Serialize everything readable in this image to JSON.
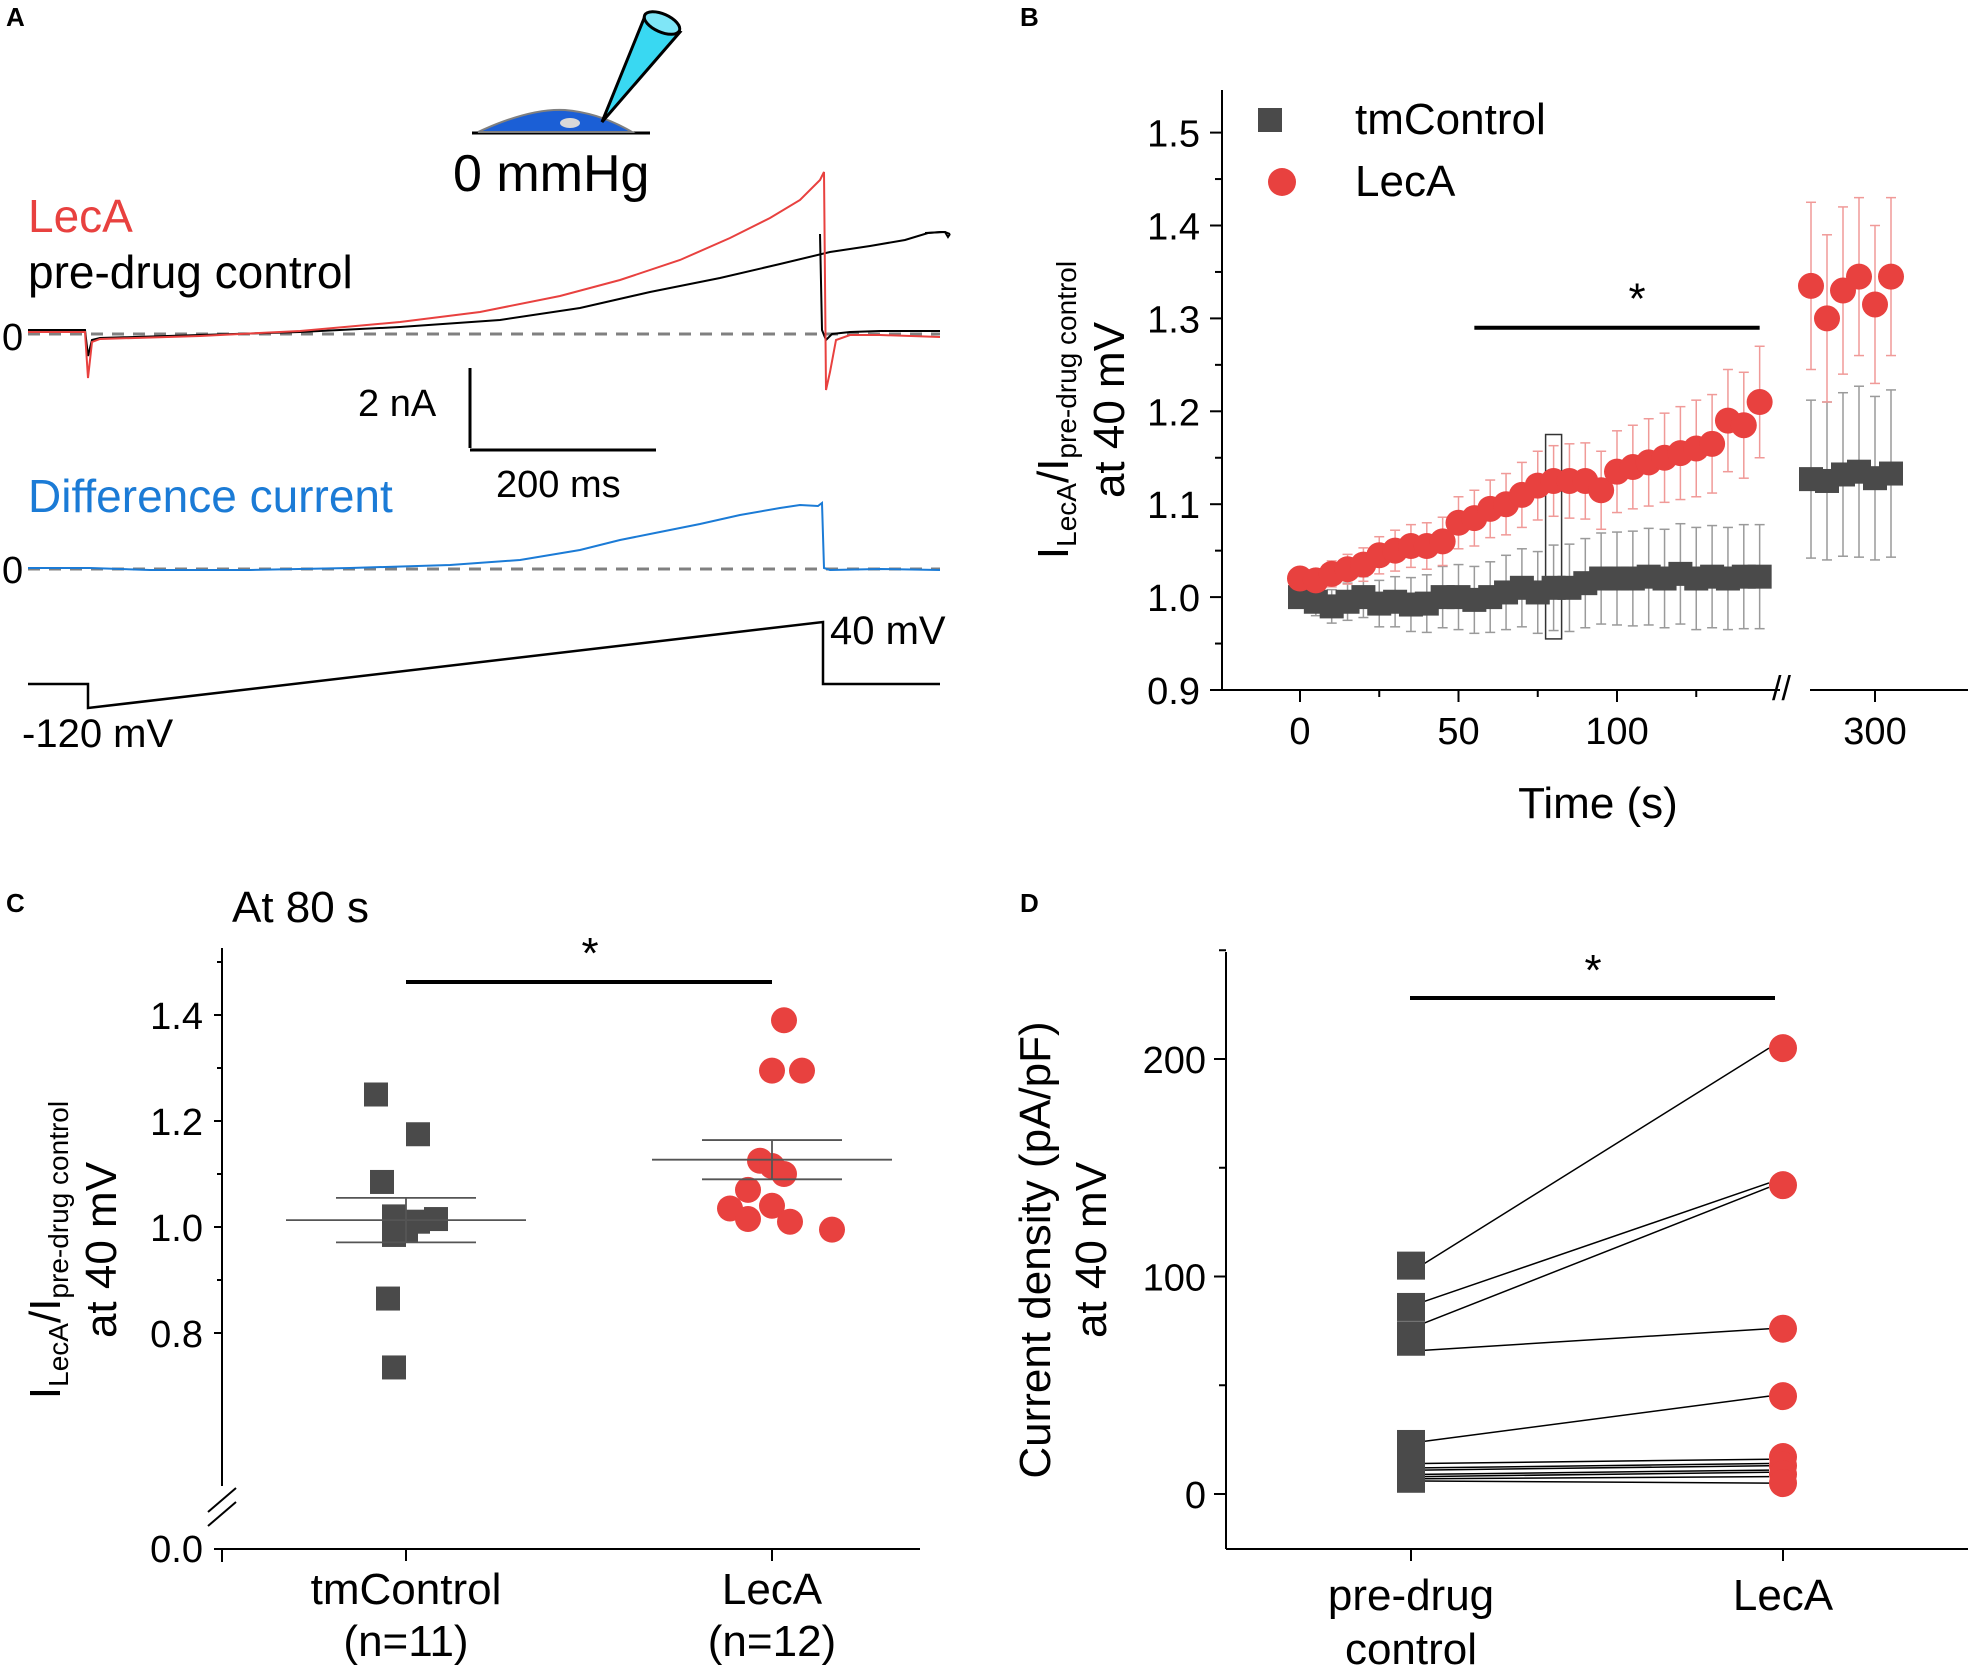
{
  "colors": {
    "red": "#e8413f",
    "black": "#000000",
    "gray": "#4a4a4a",
    "blue": "#1b7bd6",
    "err_red": "#f09a98",
    "err_gray": "#9a9a9a",
    "cyan": "#39d8f2",
    "cell": "#1b5fd6"
  },
  "panelA": {
    "letter": "A",
    "pressure_label": "0 mmHg",
    "legend_leca": "LecA",
    "legend_control": "pre-drug control",
    "diff_label": "Difference current",
    "zero1": "0",
    "zero2": "0",
    "scale_y": "2 nA",
    "scale_x": "200 ms",
    "v_hold": "-120 mV",
    "v_end": "40 mV"
  },
  "chart_data": [
    {
      "panel": "B",
      "type": "scatter",
      "xlabel": "Time (s)",
      "ylabel_main": "I",
      "ylabel_sub1": "LecA",
      "ylabel_sep": "/I",
      "ylabel_sub2": "pre-drug control",
      "ylabel_line2": "at 40 mV",
      "ylim": [
        0.9,
        1.55
      ],
      "xticks": [
        {
          "v": 0,
          "label": "0"
        },
        {
          "v": 50,
          "label": "50"
        },
        {
          "v": 100,
          "label": "100"
        },
        {
          "v": 300,
          "label": "300"
        }
      ],
      "yticks": [
        {
          "v": 0.9,
          "label": "0.9"
        },
        {
          "v": 1.0,
          "label": "1.0"
        },
        {
          "v": 1.1,
          "label": "1.1"
        },
        {
          "v": 1.2,
          "label": "1.2"
        },
        {
          "v": 1.3,
          "label": "1.3"
        },
        {
          "v": 1.4,
          "label": "1.4"
        },
        {
          "v": 1.5,
          "label": "1.5"
        }
      ],
      "axis_break": "//",
      "significance": {
        "label": "*",
        "from": 55,
        "to": 145,
        "y": 1.29
      },
      "highlight_box": {
        "x": 80,
        "y_low": 0.955,
        "y_high": 1.175
      },
      "series": [
        {
          "name": "tmControl",
          "color": "gray",
          "marker": "square",
          "x": [
            0,
            5,
            10,
            15,
            20,
            25,
            30,
            35,
            40,
            45,
            50,
            55,
            60,
            65,
            70,
            75,
            80,
            85,
            90,
            95,
            100,
            105,
            110,
            115,
            120,
            125,
            130,
            135,
            140,
            145
          ],
          "y": [
            1.0,
            0.995,
            0.99,
            0.995,
            1.0,
            0.993,
            0.995,
            0.992,
            0.993,
            1.0,
            1.0,
            0.997,
            1.0,
            1.005,
            1.01,
            1.005,
            1.01,
            1.01,
            1.015,
            1.02,
            1.02,
            1.02,
            1.022,
            1.02,
            1.025,
            1.02,
            1.022,
            1.02,
            1.022,
            1.022
          ],
          "err": [
            0.012,
            0.015,
            0.018,
            0.02,
            0.022,
            0.025,
            0.027,
            0.029,
            0.031,
            0.033,
            0.035,
            0.036,
            0.038,
            0.04,
            0.042,
            0.044,
            0.046,
            0.047,
            0.048,
            0.049,
            0.05,
            0.051,
            0.052,
            0.053,
            0.054,
            0.055,
            0.055,
            0.055,
            0.056,
            0.056
          ],
          "x_after": [
            280,
            285,
            290,
            295,
            300,
            305
          ],
          "y_after": [
            1.127,
            1.125,
            1.132,
            1.135,
            1.128,
            1.133
          ],
          "err_after": [
            0.085,
            0.085,
            0.088,
            0.092,
            0.088,
            0.09
          ]
        },
        {
          "name": "LecA",
          "color": "red",
          "marker": "circle",
          "x": [
            0,
            5,
            10,
            15,
            20,
            25,
            30,
            35,
            40,
            45,
            50,
            55,
            60,
            65,
            70,
            75,
            80,
            85,
            90,
            95,
            100,
            105,
            110,
            115,
            120,
            125,
            130,
            135,
            140,
            145
          ],
          "y": [
            1.02,
            1.018,
            1.025,
            1.03,
            1.035,
            1.045,
            1.05,
            1.055,
            1.055,
            1.06,
            1.08,
            1.085,
            1.095,
            1.1,
            1.11,
            1.12,
            1.125,
            1.125,
            1.125,
            1.115,
            1.135,
            1.14,
            1.145,
            1.15,
            1.155,
            1.16,
            1.165,
            1.19,
            1.185,
            1.21
          ],
          "err": [
            0.01,
            0.012,
            0.014,
            0.016,
            0.018,
            0.02,
            0.022,
            0.023,
            0.025,
            0.026,
            0.028,
            0.03,
            0.031,
            0.033,
            0.035,
            0.037,
            0.038,
            0.04,
            0.041,
            0.042,
            0.044,
            0.045,
            0.047,
            0.048,
            0.05,
            0.052,
            0.053,
            0.055,
            0.057,
            0.06
          ],
          "x_after": [
            280,
            285,
            290,
            295,
            300,
            305
          ],
          "y_after": [
            1.335,
            1.3,
            1.33,
            1.345,
            1.315,
            1.345
          ],
          "err_after": [
            0.09,
            0.09,
            0.09,
            0.085,
            0.085,
            0.085
          ]
        }
      ]
    },
    {
      "panel": "C",
      "type": "scatter",
      "title": "At 80 s",
      "ylabel_main": "I",
      "ylabel_sub1": "LecA",
      "ylabel_sep": "/I",
      "ylabel_sub2": "pre-drug control",
      "ylabel_line2": "at 40 mV",
      "ylim": [
        0.7,
        1.5
      ],
      "yticks": [
        {
          "v": 0.8,
          "label": "0.8"
        },
        {
          "v": 1.0,
          "label": "1.0"
        },
        {
          "v": 1.2,
          "label": "1.2"
        },
        {
          "v": 1.4,
          "label": "1.4"
        }
      ],
      "ytick_break_label": "0.0",
      "categories": [
        {
          "line1": "tmControl",
          "line2": "(n=11)"
        },
        {
          "line1": "LecA",
          "line2": "(n=12)"
        }
      ],
      "significance": "*",
      "series": [
        {
          "name": "tmControl",
          "color": "gray",
          "marker": "square",
          "mean": 1.013,
          "sem": 0.042,
          "points": [
            {
              "dx": -0.05,
              "y": 1.25
            },
            {
              "dx": 0.02,
              "y": 1.175
            },
            {
              "dx": -0.04,
              "y": 1.085
            },
            {
              "dx": -0.02,
              "y": 1.02
            },
            {
              "dx": 0.05,
              "y": 1.015
            },
            {
              "dx": 0.02,
              "y": 1.01
            },
            {
              "dx": -0.02,
              "y": 1.0
            },
            {
              "dx": 0.0,
              "y": 0.995
            },
            {
              "dx": -0.02,
              "y": 0.985
            },
            {
              "dx": -0.03,
              "y": 0.865
            },
            {
              "dx": -0.02,
              "y": 0.735
            }
          ]
        },
        {
          "name": "LecA",
          "color": "red",
          "marker": "circle",
          "mean": 1.127,
          "sem": 0.037,
          "points": [
            {
              "dx": 0.02,
              "y": 1.39
            },
            {
              "dx": 0.0,
              "y": 1.295
            },
            {
              "dx": 0.05,
              "y": 1.295
            },
            {
              "dx": -0.02,
              "y": 1.125
            },
            {
              "dx": 0.0,
              "y": 1.115
            },
            {
              "dx": 0.02,
              "y": 1.1
            },
            {
              "dx": -0.04,
              "y": 1.07
            },
            {
              "dx": -0.07,
              "y": 1.035
            },
            {
              "dx": 0.0,
              "y": 1.04
            },
            {
              "dx": -0.04,
              "y": 1.015
            },
            {
              "dx": 0.03,
              "y": 1.01
            },
            {
              "dx": 0.1,
              "y": 0.995
            }
          ]
        }
      ]
    },
    {
      "panel": "D",
      "type": "scatter",
      "ylabel_line1": "Current density (pA/pF)",
      "ylabel_line2": "at 40 mV",
      "ylim": [
        -25,
        250
      ],
      "yticks": [
        {
          "v": 0,
          "label": "0"
        },
        {
          "v": 100,
          "label": "100"
        },
        {
          "v": 200,
          "label": "200"
        }
      ],
      "categories": [
        {
          "line1": "pre-drug",
          "line2": "control"
        },
        {
          "line1": "LecA",
          "line2": ""
        }
      ],
      "significance": "*",
      "pairs": [
        {
          "pre": 105,
          "post": 205
        },
        {
          "pre": 88,
          "post": 143
        },
        {
          "pre": 78,
          "post": 141
        },
        {
          "pre": 66,
          "post": 76
        },
        {
          "pre": 24,
          "post": 45
        },
        {
          "pre": 14,
          "post": 16
        },
        {
          "pre": 12,
          "post": 14
        },
        {
          "pre": 11,
          "post": 13
        },
        {
          "pre": 9,
          "post": 11
        },
        {
          "pre": 8,
          "post": 10
        },
        {
          "pre": 7,
          "post": 8
        },
        {
          "pre": 6,
          "post": 5
        }
      ],
      "pre_markers": [
        105,
        86,
        73,
        70,
        23,
        18,
        14,
        11,
        9,
        7
      ],
      "post_markers": [
        205,
        142,
        76,
        45,
        17,
        13,
        9,
        5
      ]
    }
  ]
}
